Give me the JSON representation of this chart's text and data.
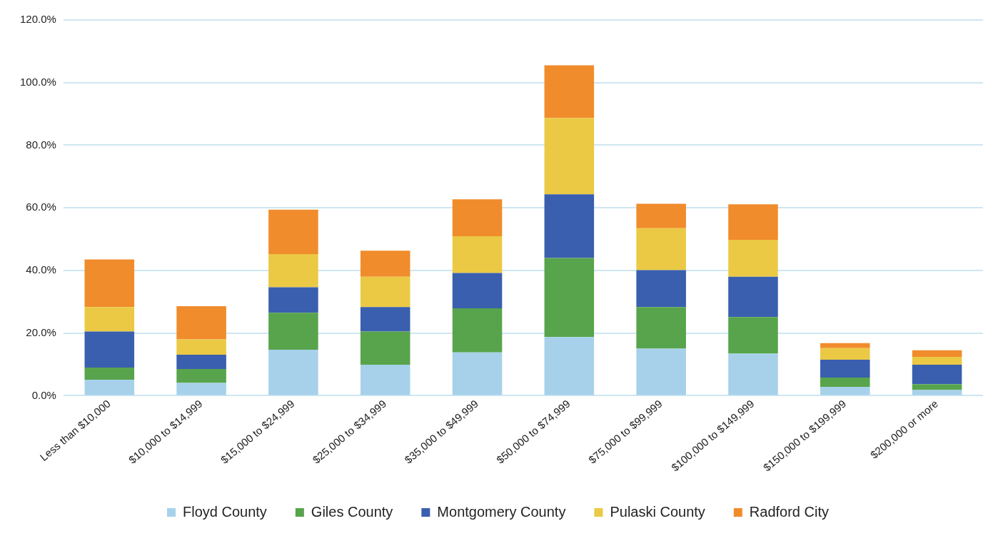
{
  "chart_data": {
    "type": "bar",
    "stacked": true,
    "categories": [
      "Less than $10,000",
      "$10,000 to $14,999",
      "$15,000 to $24,999",
      "$25,000 to $34,999",
      "$35,000 to $49,999",
      "$50,000 to $74,999",
      "$75,000 to $99,999",
      "$100,000 to $149,999",
      "$150,000 to $199,999",
      "$200,000 or more"
    ],
    "series": [
      {
        "name": "Floyd County",
        "color": "#a7d1ea",
        "values": [
          5.1,
          4.1,
          14.7,
          9.9,
          13.8,
          18.7,
          15.0,
          13.4,
          2.8,
          1.8
        ]
      },
      {
        "name": "Giles County",
        "color": "#58a44c",
        "values": [
          3.9,
          4.4,
          11.8,
          10.6,
          14.1,
          25.3,
          13.3,
          11.7,
          3.0,
          1.9
        ]
      },
      {
        "name": "Montgomery County",
        "color": "#3a5fae",
        "values": [
          11.5,
          4.6,
          8.1,
          7.8,
          11.3,
          20.3,
          11.8,
          12.9,
          5.7,
          6.2
        ]
      },
      {
        "name": "Pulaski County",
        "color": "#ebc944",
        "values": [
          7.8,
          4.9,
          10.6,
          9.7,
          11.7,
          24.4,
          13.4,
          11.8,
          3.7,
          2.5
        ]
      },
      {
        "name": "Radford City",
        "color": "#f08c2c",
        "values": [
          15.2,
          10.6,
          14.2,
          8.3,
          11.8,
          16.8,
          7.8,
          11.3,
          1.6,
          2.1
        ]
      }
    ],
    "ylim": [
      0,
      120
    ],
    "yticks": [
      {
        "value": 0,
        "label": "0.0%"
      },
      {
        "value": 20,
        "label": "20.0%"
      },
      {
        "value": 40,
        "label": "40.0%"
      },
      {
        "value": 60,
        "label": "60.0%"
      },
      {
        "value": 80,
        "label": "80.0%"
      },
      {
        "value": 100,
        "label": "100.0%"
      },
      {
        "value": 120,
        "label": "120.0%"
      }
    ],
    "grid": "y",
    "legend": "bottom"
  }
}
